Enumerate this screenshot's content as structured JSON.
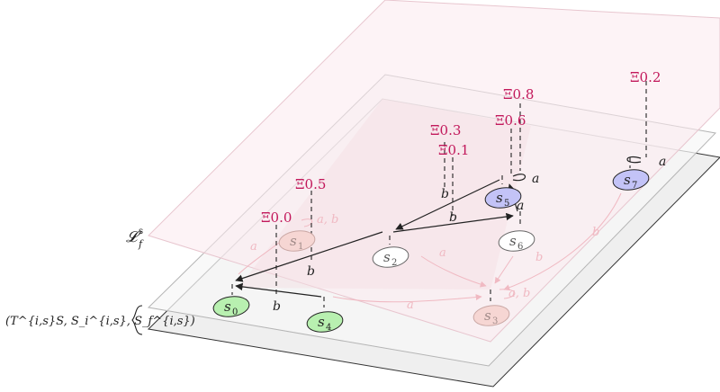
{
  "diagram": {
    "left_labels": {
      "layer_label": "𝓛",
      "layer_sub": "f",
      "layer_sup": "s",
      "tuple_label": "(T^{i,s}S, S_i^{i,s}, S_f^{i,s})"
    },
    "states": [
      {
        "id": "s0",
        "base": "s",
        "sub": "0",
        "fill": "#b8f0b0",
        "stroke": "#222222"
      },
      {
        "id": "s1",
        "base": "s",
        "sub": "1",
        "fill": "#f6d6d3",
        "stroke": "#c9a7a4"
      },
      {
        "id": "s2",
        "base": "s",
        "sub": "2",
        "fill": "#ffffff",
        "stroke": "#555555"
      },
      {
        "id": "s3",
        "base": "s",
        "sub": "3",
        "fill": "#f6d6d3",
        "stroke": "#c9a7a4"
      },
      {
        "id": "s4",
        "base": "s",
        "sub": "4",
        "fill": "#b8f0b0",
        "stroke": "#222222"
      },
      {
        "id": "s5",
        "base": "s",
        "sub": "5",
        "fill": "#c3c3f7",
        "stroke": "#222222"
      },
      {
        "id": "s6",
        "base": "s",
        "sub": "6",
        "fill": "#ffffff",
        "stroke": "#555555"
      },
      {
        "id": "s7",
        "base": "s",
        "sub": "7",
        "fill": "#c3c3f7",
        "stroke": "#222222"
      }
    ],
    "probabilities": [
      {
        "id": "p0",
        "text": "Ξ0.0"
      },
      {
        "id": "p1",
        "text": "Ξ0.5"
      },
      {
        "id": "p2",
        "text": "Ξ0.3"
      },
      {
        "id": "p3",
        "text": "Ξ0.1"
      },
      {
        "id": "p4",
        "text": "Ξ0.8"
      },
      {
        "id": "p5",
        "text": "Ξ0.6"
      },
      {
        "id": "p6",
        "text": "Ξ0.2"
      }
    ],
    "edge_labels": [
      {
        "id": "e1",
        "text": "a"
      },
      {
        "id": "e2",
        "text": "a"
      },
      {
        "id": "e3",
        "text": "b"
      },
      {
        "id": "e4",
        "text": "b"
      },
      {
        "id": "e5",
        "text": "b"
      },
      {
        "id": "e6",
        "text": "b"
      },
      {
        "id": "e7",
        "text": "a"
      },
      {
        "id": "e8",
        "text": "a, b"
      },
      {
        "id": "e9",
        "text": "a, b"
      },
      {
        "id": "e10",
        "text": "a"
      },
      {
        "id": "e11",
        "text": "b"
      },
      {
        "id": "e12",
        "text": "b"
      },
      {
        "id": "e13",
        "text": "a"
      },
      {
        "id": "e14",
        "text": "a"
      }
    ],
    "colors": {
      "accent": "#c2185b",
      "top_plane": "#fbeef1",
      "mid_plane": "#f6f6f6",
      "bottom_plane": "#efefef",
      "faded": "#f0b9c2"
    }
  }
}
